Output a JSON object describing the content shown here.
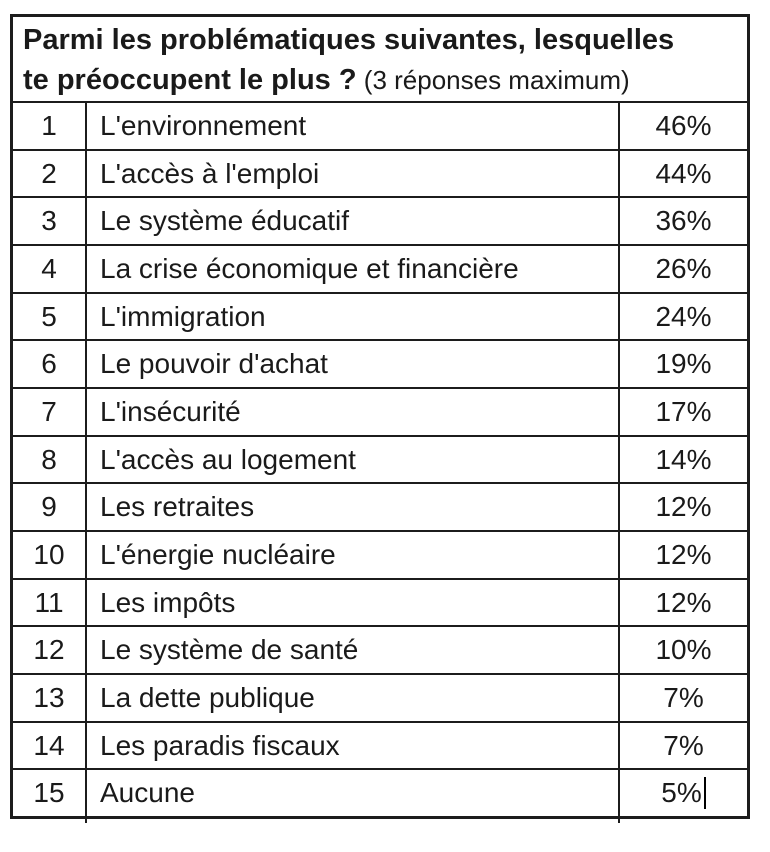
{
  "page": {
    "background": "#ffffff"
  },
  "colors": {
    "border": "#1c1c1c",
    "text": "#1a1a1a",
    "background": "#ffffff"
  },
  "survey_table": {
    "title": {
      "line1": "Parmi les problématiques suivantes, lesquelles",
      "line2_bold": "te préoccupent le plus ?",
      "line2_note": " (3 réponses maximum)"
    },
    "rows": [
      {
        "rank": "1",
        "label": "L'environnement",
        "value": "46%"
      },
      {
        "rank": "2",
        "label": "L'accès à l'emploi",
        "value": "44%"
      },
      {
        "rank": "3",
        "label": "Le système éducatif",
        "value": "36%"
      },
      {
        "rank": "4",
        "label": "La crise économique et financière",
        "value": "26%"
      },
      {
        "rank": "5",
        "label": "L'immigration",
        "value": "24%"
      },
      {
        "rank": "6",
        "label": "Le pouvoir d'achat",
        "value": "19%"
      },
      {
        "rank": "7",
        "label": "L'insécurité",
        "value": "17%"
      },
      {
        "rank": "8",
        "label": "L'accès au logement",
        "value": "14%"
      },
      {
        "rank": "9",
        "label": "Les retraites",
        "value": "12%"
      },
      {
        "rank": "10",
        "label": "L'énergie nucléaire",
        "value": "12%"
      },
      {
        "rank": "11",
        "label": "Les impôts",
        "value": "12%"
      },
      {
        "rank": "12",
        "label": "Le système de santé",
        "value": "10%"
      },
      {
        "rank": "13",
        "label": "La dette publique",
        "value": "7%"
      },
      {
        "rank": "14",
        "label": "Les paradis fiscaux",
        "value": "7%"
      },
      {
        "rank": "15",
        "label": "Aucune",
        "value": "5%",
        "has_cursor": true
      }
    ]
  },
  "chart_data": {
    "type": "table",
    "title": "Parmi les problématiques suivantes, lesquelles te préoccupent le plus ? (3 réponses maximum)",
    "categories": [
      "L'environnement",
      "L'accès à l'emploi",
      "Le système éducatif",
      "La crise économique et financière",
      "L'immigration",
      "Le pouvoir d'achat",
      "L'insécurité",
      "L'accès au logement",
      "Les retraites",
      "L'énergie nucléaire",
      "Les impôts",
      "Le système de santé",
      "La dette publique",
      "Les paradis fiscaux",
      "Aucune"
    ],
    "values": [
      46,
      44,
      36,
      26,
      24,
      19,
      17,
      14,
      12,
      12,
      12,
      10,
      7,
      7,
      5
    ],
    "value_unit": "%"
  }
}
